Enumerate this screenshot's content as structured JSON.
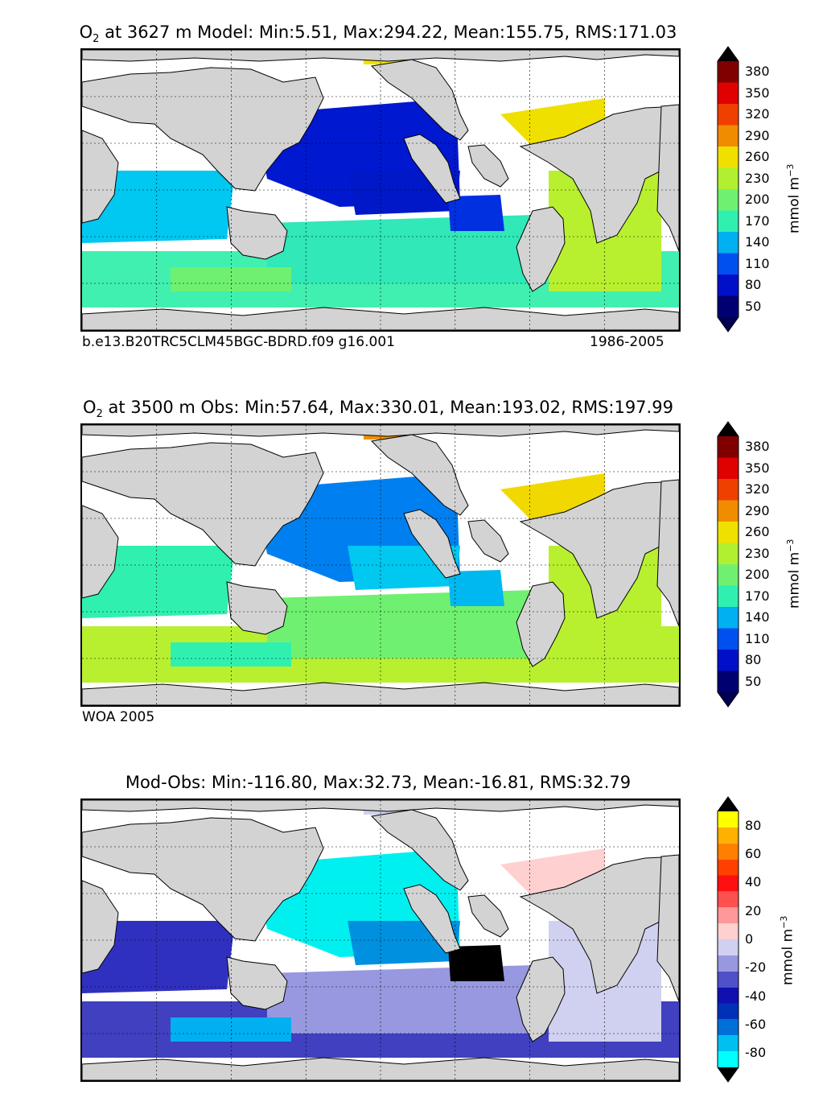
{
  "panels": [
    {
      "title_species": "O",
      "title_sub": "2",
      "title_rest": " at 3627 m Model: Min:5.51, Max:294.22, Mean:155.75, RMS:171.03",
      "footer_left": "b.e13.B20TRC5CLM45BGC-BDRD.f09 g16.001",
      "footer_right": "1986-2005",
      "colorbar": {
        "colors": [
          "#000070",
          "#0010c8",
          "#0050f0",
          "#00b0f0",
          "#30f0b0",
          "#70f070",
          "#b0f030",
          "#f0e000",
          "#f08c00",
          "#f04000",
          "#e00000",
          "#800000"
        ],
        "ticks": [
          "50",
          "80",
          "110",
          "140",
          "170",
          "200",
          "230",
          "260",
          "290",
          "320",
          "350",
          "380"
        ],
        "extend_low_color": "#000050",
        "extend_high_color": "#000000"
      },
      "unit": "mmol m",
      "unit_sup": "−3",
      "regions": {
        "north_pacific": "#0018d0",
        "tropical_pacific": "#0018c8",
        "east_pacific": "#0030e0",
        "indian_ocean": "#00c8f0",
        "south_pacific": "#30e8b8",
        "southern_ocean": "#40f0b0",
        "north_atlantic": "#f0e000",
        "south_atlantic": "#b8f030",
        "arctic": "#f0e000",
        "sub_patch": "#70f070"
      }
    },
    {
      "title_species": "O",
      "title_sub": "2",
      "title_rest": " at 3500 m Obs: Min:57.64, Max:330.01, Mean:193.02, RMS:197.99",
      "footer_left": "WOA 2005",
      "footer_right": "",
      "colorbar": {
        "colors": [
          "#000070",
          "#0010c8",
          "#0050f0",
          "#00b0f0",
          "#30f0b0",
          "#70f070",
          "#b0f030",
          "#f0e000",
          "#f08c00",
          "#f04000",
          "#e00000",
          "#800000"
        ],
        "ticks": [
          "50",
          "80",
          "110",
          "140",
          "170",
          "200",
          "230",
          "260",
          "290",
          "320",
          "350",
          "380"
        ],
        "extend_low_color": "#000050",
        "extend_high_color": "#000000"
      },
      "unit": "mmol m",
      "unit_sup": "−3",
      "regions": {
        "north_pacific": "#0080f0",
        "tropical_pacific": "#00c8f0",
        "east_pacific": "#00b8f0",
        "indian_ocean": "#30f0b0",
        "south_pacific": "#70f070",
        "southern_ocean": "#b8f030",
        "north_atlantic": "#f0d800",
        "south_atlantic": "#b8f030",
        "arctic": "#f09000",
        "sub_patch": "#30f0b0"
      }
    },
    {
      "title_species": "",
      "title_sub": "",
      "title_rest": "Mod-Obs: Min:-116.80, Max:32.73, Mean:-16.81, RMS:32.79",
      "footer_left": "",
      "footer_right": "",
      "colorbar": {
        "colors": [
          "#00ffff",
          "#00c0f0",
          "#0070d8",
          "#0030b8",
          "#1010b0",
          "#5050c8",
          "#9898e0",
          "#d0d0f0",
          "#ffd0d0",
          "#ff9898",
          "#ff5050",
          "#ff1010",
          "#ff4000",
          "#ff8000",
          "#ffb000",
          "#ffff00"
        ],
        "ticks": [
          "-80",
          "-60",
          "-40",
          "-20",
          "0",
          "20",
          "40",
          "60",
          "80"
        ],
        "extend_low_color": "#000000",
        "extend_high_color": "#000000"
      },
      "unit": "mmol m",
      "unit_sup": "−3",
      "regions": {
        "north_pacific": "#00f0f0",
        "tropical_pacific": "#0090e0",
        "east_pacific": "#000000",
        "indian_ocean": "#3030c0",
        "south_pacific": "#9898e0",
        "southern_ocean": "#4040c0",
        "north_atlantic": "#ffd0d0",
        "south_atlantic": "#d0d0f0",
        "arctic": "#d0d0f0",
        "sub_patch": "#00b0f0"
      }
    }
  ]
}
